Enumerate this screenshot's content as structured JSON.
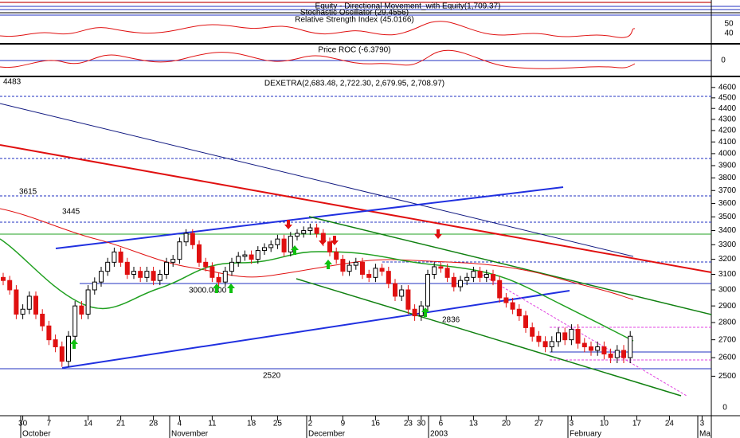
{
  "indicators": {
    "equity_title": "Equity - Directional Movement_with Equity(1,709.37)",
    "stochastic_title": "Stochastic Oscillator (29.4556)",
    "rsi_title": "Relative Strength Index (45.0166)",
    "rsi_ticks": [
      "50",
      "40"
    ],
    "roc_title": "Price ROC (-6.3790)",
    "roc_tick": "0"
  },
  "chart_data": {
    "type": "candlestick",
    "title": "DEXETRA(2,683.48, 2,722.30, 2,679.95, 2,708.97)",
    "log_scale": true,
    "up_color": "#ffffff",
    "down_color": "#e01010",
    "ylim": [
      2300,
      4700
    ],
    "yticks": [
      2500,
      2600,
      2700,
      2800,
      2900,
      3000,
      3100,
      3200,
      3300,
      3400,
      3500,
      3600,
      3700,
      3800,
      3900,
      4000,
      4100,
      4200,
      4300,
      4400,
      4500,
      4600
    ],
    "axis_floor_label": "0",
    "categories": [
      null,
      null,
      null,
      "30",
      null,
      null,
      null,
      "7",
      null,
      null,
      null,
      null,
      null,
      "14",
      null,
      null,
      null,
      null,
      "21",
      null,
      null,
      null,
      null,
      "28",
      null,
      null,
      null,
      "4",
      null,
      null,
      null,
      null,
      "11",
      null,
      null,
      null,
      null,
      null,
      "18",
      null,
      null,
      null,
      "25",
      null,
      null,
      null,
      null,
      "2",
      null,
      null,
      null,
      null,
      "9",
      null,
      null,
      null,
      null,
      "16",
      null,
      null,
      null,
      null,
      "23",
      null,
      "30",
      null,
      null,
      "6",
      null,
      null,
      null,
      null,
      "13",
      null,
      null,
      null,
      null,
      "20",
      null,
      null,
      null,
      null,
      "27",
      null,
      null,
      null,
      null,
      "3",
      null,
      null,
      null,
      null,
      "10",
      null,
      null,
      null,
      null,
      "17",
      null,
      null,
      null,
      null,
      "24",
      null,
      null,
      null,
      null,
      "3"
    ],
    "months": [
      "October",
      "November",
      "December",
      "2003",
      "February",
      "Ma"
    ],
    "open": [
      3080,
      3060,
      3000,
      2850,
      2880,
      2960,
      2850,
      2780,
      2700,
      2660,
      2580,
      2720,
      2900,
      2850,
      3000,
      3050,
      3120,
      3180,
      3250,
      3180,
      3100,
      3120,
      3080,
      3120,
      3060,
      3100,
      3180,
      3200,
      3320,
      3380,
      3300,
      3180,
      3150,
      3080,
      3050,
      3120,
      3180,
      3220,
      3230,
      3200,
      3260,
      3280,
      3300,
      3340,
      3250,
      3360,
      3380,
      3400,
      3420,
      3380,
      3320,
      3250,
      3200,
      3120,
      3160,
      3180,
      3100,
      3080,
      3140,
      3120,
      3040,
      2960,
      3000,
      2880,
      2840,
      2900,
      3100,
      3150,
      3140,
      3080,
      3020,
      3060,
      3080,
      3120,
      3080,
      3100,
      3060,
      2950,
      2920,
      2880,
      2840,
      2770,
      2720,
      2690,
      2660,
      2690,
      2740,
      2700,
      2760,
      2680,
      2660,
      2640,
      2660,
      2620,
      2600,
      2640,
      2600,
      null,
      null,
      null,
      null,
      null,
      null,
      null,
      null,
      null,
      null,
      null
    ],
    "high": [
      3110,
      3090,
      3030,
      2910,
      2990,
      2990,
      2880,
      2810,
      2730,
      2690,
      2750,
      2930,
      2930,
      3030,
      3080,
      3150,
      3210,
      3280,
      3280,
      3210,
      3150,
      3150,
      3150,
      3150,
      3130,
      3210,
      3230,
      3350,
      3410,
      3410,
      3330,
      3210,
      3180,
      3110,
      3150,
      3210,
      3250,
      3260,
      3260,
      3290,
      3310,
      3330,
      3370,
      3370,
      3390,
      3410,
      3430,
      3450,
      3450,
      3410,
      3350,
      3280,
      3230,
      3190,
      3210,
      3210,
      3130,
      3170,
      3170,
      3150,
      3070,
      3030,
      3030,
      2910,
      2930,
      3130,
      3180,
      3180,
      3170,
      3110,
      3090,
      3110,
      3150,
      3150,
      3130,
      3130,
      3090,
      2980,
      2950,
      2910,
      2870,
      2800,
      2750,
      2720,
      2720,
      2770,
      2770,
      2790,
      2790,
      2710,
      2690,
      2690,
      2690,
      2650,
      2670,
      2670,
      2750,
      null,
      null,
      null,
      null,
      null,
      null,
      null,
      null,
      null,
      null,
      null
    ],
    "low": [
      3030,
      2970,
      2820,
      2820,
      2850,
      2820,
      2750,
      2670,
      2630,
      2550,
      2550,
      2690,
      2820,
      2820,
      2970,
      3020,
      3090,
      3150,
      3150,
      3070,
      3070,
      3050,
      3050,
      3030,
      3030,
      3070,
      3150,
      3170,
      3290,
      3270,
      3150,
      3120,
      3050,
      3020,
      3020,
      3090,
      3150,
      3190,
      3170,
      3170,
      3230,
      3250,
      3270,
      3220,
      3220,
      3330,
      3350,
      3370,
      3350,
      3290,
      3220,
      3170,
      3090,
      3090,
      3130,
      3070,
      3050,
      3050,
      3090,
      3010,
      2930,
      2930,
      2850,
      2810,
      2810,
      2870,
      3070,
      3110,
      3050,
      2990,
      2990,
      3030,
      3050,
      3050,
      3050,
      3030,
      2920,
      2890,
      2850,
      2810,
      2740,
      2690,
      2660,
      2630,
      2630,
      2660,
      2670,
      2670,
      2650,
      2630,
      2610,
      2610,
      2590,
      2570,
      2570,
      2570,
      2570,
      null,
      null,
      null,
      null,
      null,
      null,
      null,
      null,
      null,
      null,
      null
    ],
    "close": [
      3060,
      3000,
      2850,
      2880,
      2960,
      2850,
      2780,
      2700,
      2660,
      2580,
      2720,
      2900,
      2850,
      3000,
      3050,
      3120,
      3180,
      3250,
      3180,
      3100,
      3120,
      3080,
      3120,
      3060,
      3100,
      3180,
      3200,
      3320,
      3380,
      3300,
      3180,
      3150,
      3080,
      3050,
      3120,
      3180,
      3220,
      3230,
      3200,
      3260,
      3280,
      3300,
      3340,
      3250,
      3360,
      3380,
      3400,
      3420,
      3380,
      3320,
      3250,
      3200,
      3120,
      3160,
      3180,
      3100,
      3080,
      3140,
      3120,
      3040,
      2960,
      3000,
      2880,
      2840,
      2900,
      3100,
      3150,
      3140,
      3080,
      3020,
      3060,
      3080,
      3120,
      3080,
      3100,
      3060,
      2950,
      2920,
      2880,
      2840,
      2770,
      2720,
      2690,
      2660,
      2690,
      2740,
      2700,
      2760,
      2680,
      2660,
      2640,
      2660,
      2620,
      2600,
      2640,
      2600,
      2720,
      null,
      null,
      null,
      null,
      null,
      null,
      null,
      null,
      null,
      null,
      null
    ],
    "annotations": [
      "4483",
      "3615",
      "3445",
      "3000.0000",
      "2836",
      "2520"
    ]
  }
}
